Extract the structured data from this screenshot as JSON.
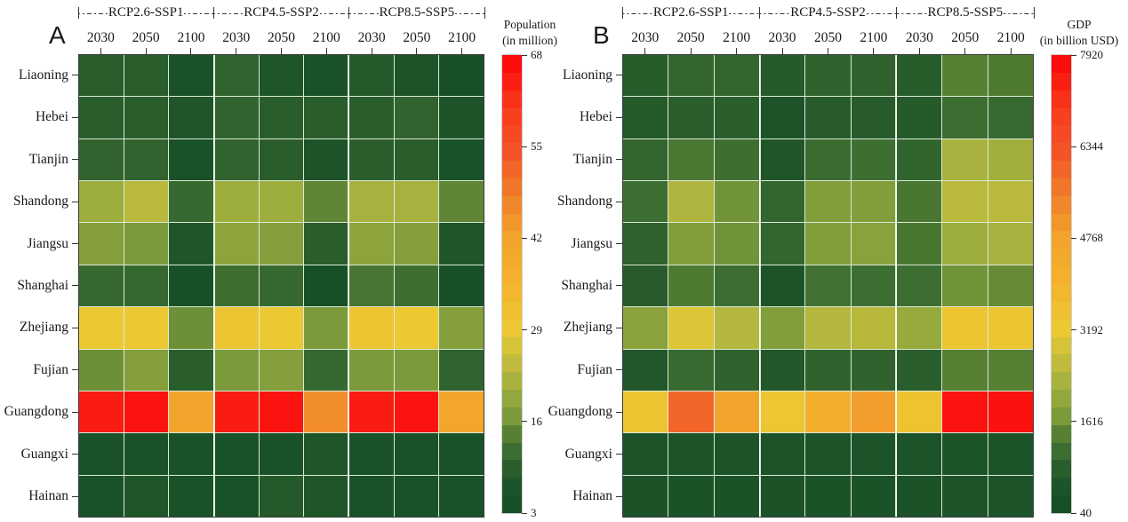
{
  "rows": [
    "Liaoning",
    "Hebei",
    "Tianjin",
    "Shandong",
    "Jiangsu",
    "Shanghai",
    "Zhejiang",
    "Fujian",
    "Guangdong",
    "Guangxi",
    "Hainan"
  ],
  "scenarios": [
    "RCP2.6-SSP1",
    "RCP4.5-SSP2",
    "RCP8.5-SSP5"
  ],
  "years": [
    "2030",
    "2050",
    "2100"
  ],
  "colormap_stops": [
    {
      "t": 0.0,
      "c": "#175027"
    },
    {
      "t": 0.04,
      "c": "#1d5429"
    },
    {
      "t": 0.08,
      "c": "#2a5e2c"
    },
    {
      "t": 0.12,
      "c": "#3c6e31"
    },
    {
      "t": 0.16,
      "c": "#578033"
    },
    {
      "t": 0.2,
      "c": "#7b9a3a"
    },
    {
      "t": 0.25,
      "c": "#98ab3d"
    },
    {
      "t": 0.3,
      "c": "#b4b73e"
    },
    {
      "t": 0.35,
      "c": "#d2c239"
    },
    {
      "t": 0.4,
      "c": "#ecc933"
    },
    {
      "t": 0.5,
      "c": "#f3b22d"
    },
    {
      "t": 0.6,
      "c": "#f2a42c"
    },
    {
      "t": 0.7,
      "c": "#f0802a"
    },
    {
      "t": 0.8,
      "c": "#f25427"
    },
    {
      "t": 0.9,
      "c": "#f93a1c"
    },
    {
      "t": 1.0,
      "c": "#fb0d0d"
    }
  ],
  "chart_data": [
    {
      "type": "heatmap",
      "panel": "A",
      "title": "Population",
      "subtitle": "(in million)",
      "rows": [
        "Liaoning",
        "Hebei",
        "Tianjin",
        "Shandong",
        "Jiangsu",
        "Shanghai",
        "Zhejiang",
        "Fujian",
        "Guangdong",
        "Guangxi",
        "Hainan"
      ],
      "column_groups": [
        "RCP2.6-SSP1",
        "RCP4.5-SSP2",
        "RCP8.5-SSP5"
      ],
      "years_per_group": [
        "2030",
        "2050",
        "2100"
      ],
      "vmin": 3,
      "vmax": 68,
      "colorbar_ticks": [
        "68",
        "55",
        "42",
        "29",
        "16",
        "3"
      ],
      "values": [
        [
          8,
          8,
          4,
          9,
          6,
          4,
          7,
          5,
          3
        ],
        [
          8,
          8,
          6,
          9,
          8,
          8,
          8,
          9,
          5
        ],
        [
          9,
          9,
          4,
          9,
          8,
          5,
          8,
          8,
          4
        ],
        [
          20,
          23,
          10,
          20,
          20,
          14,
          21,
          21,
          14
        ],
        [
          17,
          16,
          6,
          18,
          17,
          8,
          18,
          17,
          6
        ],
        [
          10,
          10,
          3,
          11,
          10,
          3,
          12,
          11,
          3
        ],
        [
          29,
          29,
          15,
          30,
          29,
          16,
          30,
          29,
          17
        ],
        [
          15,
          17,
          8,
          16,
          17,
          10,
          16,
          16,
          9
        ],
        [
          66,
          67,
          42,
          66,
          67,
          46,
          66,
          67,
          41
        ],
        [
          4,
          4,
          4,
          4,
          4,
          6,
          4,
          4,
          4
        ],
        [
          4,
          6,
          4,
          4,
          7,
          6,
          4,
          4,
          4
        ]
      ]
    },
    {
      "type": "heatmap",
      "panel": "B",
      "title": "GDP",
      "subtitle": "(in billion USD)",
      "rows": [
        "Liaoning",
        "Hebei",
        "Tianjin",
        "Shandong",
        "Jiangsu",
        "Shanghai",
        "Zhejiang",
        "Fujian",
        "Guangdong",
        "Guangxi",
        "Hainan"
      ],
      "column_groups": [
        "RCP2.6-SSP1",
        "RCP4.5-SSP2",
        "RCP8.5-SSP5"
      ],
      "years_per_group": [
        "2030",
        "2050",
        "2100"
      ],
      "vmin": 40,
      "vmax": 7920,
      "colorbar_ticks": [
        "7920",
        "6344",
        "4768",
        "3192",
        "1616",
        "40"
      ],
      "values": [
        [
          600,
          830,
          830,
          540,
          750,
          750,
          600,
          1300,
          1200
        ],
        [
          540,
          670,
          670,
          300,
          590,
          590,
          540,
          990,
          900
        ],
        [
          830,
          1150,
          1000,
          400,
          950,
          1000,
          800,
          2250,
          2150
        ],
        [
          990,
          2330,
          1540,
          830,
          1700,
          1700,
          1140,
          2460,
          2460
        ],
        [
          750,
          1700,
          1540,
          830,
          1700,
          1800,
          1140,
          2100,
          2250
        ],
        [
          590,
          1200,
          990,
          300,
          1050,
          990,
          990,
          1540,
          1450
        ],
        [
          1800,
          2950,
          2400,
          1700,
          2400,
          2450,
          2000,
          3330,
          3330
        ],
        [
          450,
          900,
          750,
          450,
          750,
          750,
          670,
          1300,
          1300
        ],
        [
          3330,
          6030,
          4770,
          3250,
          4220,
          4930,
          3400,
          7800,
          7850
        ],
        [
          280,
          300,
          300,
          280,
          300,
          300,
          280,
          320,
          320
        ],
        [
          230,
          250,
          250,
          230,
          250,
          250,
          230,
          280,
          280
        ]
      ]
    }
  ]
}
